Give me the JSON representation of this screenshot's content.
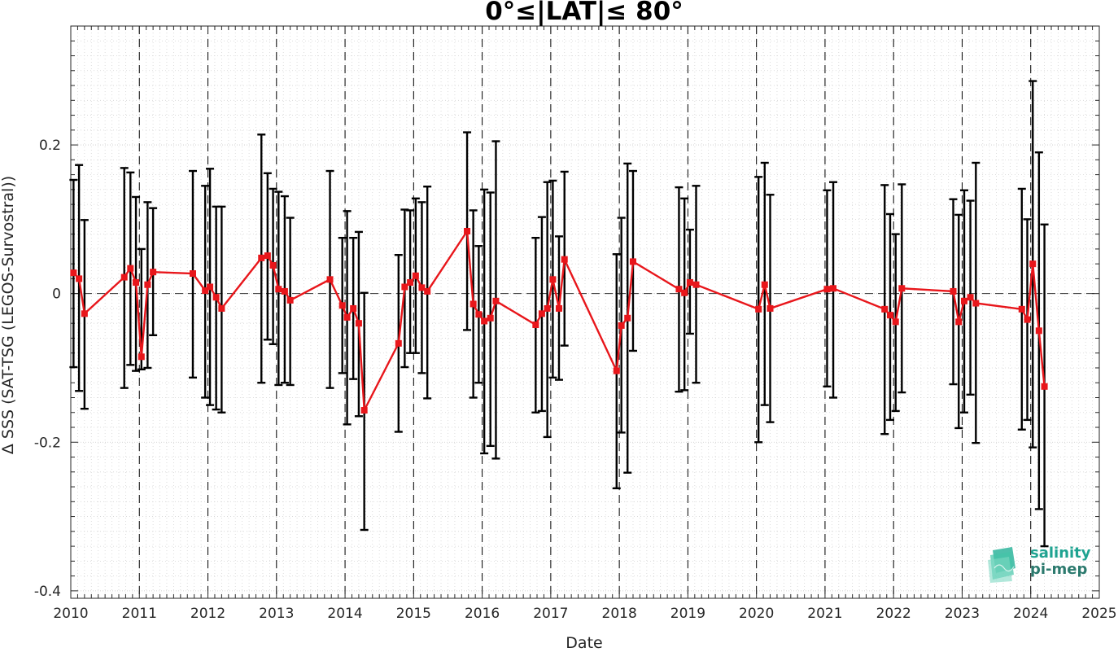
{
  "chart_data": {
    "type": "line",
    "title": "0°≤|LAT|≤ 80°",
    "xlabel": "Date",
    "ylabel": "Δ SSS (SAT-TSG (LEGOS-Survostral))",
    "xlim": [
      2010,
      2025
    ],
    "ylim": [
      -0.41,
      0.36
    ],
    "x_ticks": [
      "2010",
      "2011",
      "2012",
      "2013",
      "2014",
      "2015",
      "2016",
      "2017",
      "2018",
      "2019",
      "2020",
      "2021",
      "2022",
      "2023",
      "2024",
      "2025"
    ],
    "y_ticks": [
      "-0.4",
      "-0.2",
      "0",
      "0.2"
    ],
    "y_tick_values": [
      -0.4,
      -0.2,
      0,
      0.2
    ],
    "year_markers": [
      "2011",
      "2012",
      "2013",
      "2014",
      "2015",
      "2016",
      "2017",
      "2018",
      "2019",
      "2020",
      "2021",
      "2022",
      "2023",
      "2024"
    ],
    "zero_line": 0,
    "grid": true,
    "series": [
      {
        "color": "#e8161b",
        "errorbar_color": "#000000",
        "x": [
          2010.04,
          2010.12,
          2010.2,
          2010.78,
          2010.87,
          2010.95,
          2011.03,
          2011.12,
          2011.2,
          2011.78,
          2011.96,
          2012.03,
          2012.12,
          2012.2,
          2012.78,
          2012.87,
          2012.95,
          2013.03,
          2013.12,
          2013.2,
          2013.78,
          2013.96,
          2014.03,
          2014.12,
          2014.2,
          2014.28,
          2014.78,
          2014.87,
          2014.95,
          2015.03,
          2015.12,
          2015.2,
          2015.78,
          2015.87,
          2015.95,
          2016.03,
          2016.12,
          2016.2,
          2016.78,
          2016.87,
          2016.95,
          2017.03,
          2017.12,
          2017.2,
          2017.96,
          2018.03,
          2018.12,
          2018.2,
          2018.87,
          2018.95,
          2019.03,
          2019.12,
          2020.03,
          2020.12,
          2020.2,
          2021.03,
          2021.12,
          2021.87,
          2021.95,
          2022.03,
          2022.12,
          2022.87,
          2022.95,
          2023.03,
          2023.12,
          2023.2,
          2023.87,
          2023.95,
          2024.03,
          2024.12,
          2024.2
        ],
        "y": [
          0.028,
          0.02,
          -0.027,
          0.022,
          0.034,
          0.015,
          -0.085,
          0.012,
          0.029,
          0.027,
          0.004,
          0.009,
          -0.005,
          -0.02,
          0.048,
          0.051,
          0.038,
          0.006,
          0.003,
          -0.009,
          0.019,
          -0.016,
          -0.032,
          -0.02,
          -0.04,
          -0.157,
          -0.067,
          0.009,
          0.015,
          0.024,
          0.008,
          0.003,
          0.084,
          -0.014,
          -0.028,
          -0.037,
          -0.033,
          -0.01,
          -0.042,
          -0.027,
          -0.02,
          0.019,
          -0.02,
          0.046,
          -0.104,
          -0.043,
          -0.033,
          0.043,
          0.006,
          0.001,
          0.015,
          0.012,
          -0.021,
          0.012,
          -0.02,
          0.006,
          0.007,
          -0.021,
          -0.029,
          -0.038,
          0.007,
          0.003,
          -0.038,
          -0.01,
          -0.005,
          -0.013,
          -0.021,
          -0.035,
          0.04,
          -0.05,
          -0.125
        ],
        "err_low": [
          -0.099,
          -0.131,
          -0.155,
          -0.127,
          -0.096,
          -0.104,
          -0.102,
          -0.1,
          -0.056,
          -0.113,
          -0.14,
          -0.15,
          -0.156,
          -0.16,
          -0.12,
          -0.062,
          -0.068,
          -0.123,
          -0.12,
          -0.123,
          -0.127,
          -0.107,
          -0.176,
          -0.115,
          -0.165,
          -0.318,
          -0.186,
          -0.099,
          -0.08,
          -0.08,
          -0.107,
          -0.141,
          -0.049,
          -0.14,
          -0.12,
          -0.215,
          -0.205,
          -0.222,
          -0.16,
          -0.158,
          -0.193,
          -0.113,
          -0.116,
          -0.07,
          -0.262,
          -0.187,
          -0.241,
          -0.077,
          -0.132,
          -0.13,
          -0.054,
          -0.12,
          -0.2,
          -0.15,
          -0.173,
          -0.125,
          -0.14,
          -0.189,
          -0.17,
          -0.158,
          -0.133,
          -0.122,
          -0.181,
          -0.16,
          -0.136,
          -0.201,
          -0.183,
          -0.17,
          -0.207,
          -0.29,
          -0.34
        ],
        "err_high": [
          0.153,
          0.173,
          0.099,
          0.169,
          0.163,
          0.13,
          0.06,
          0.123,
          0.115,
          0.165,
          0.145,
          0.168,
          0.117,
          0.117,
          0.214,
          0.162,
          0.141,
          0.137,
          0.131,
          0.102,
          0.165,
          0.075,
          0.111,
          0.075,
          0.083,
          0.001,
          0.052,
          0.113,
          0.112,
          0.128,
          0.123,
          0.144,
          0.217,
          0.112,
          0.064,
          0.14,
          0.136,
          0.205,
          0.075,
          0.103,
          0.15,
          0.152,
          0.077,
          0.164,
          0.053,
          0.102,
          0.175,
          0.165,
          0.143,
          0.128,
          0.086,
          0.145,
          0.157,
          0.176,
          0.133,
          0.139,
          0.15,
          0.146,
          0.107,
          0.08,
          0.147,
          0.127,
          0.106,
          0.139,
          0.125,
          0.176,
          0.141,
          0.1,
          0.286,
          0.19,
          0.093
        ]
      }
    ]
  },
  "logo": {
    "line1": "salinity",
    "line2": "pi-mep"
  }
}
